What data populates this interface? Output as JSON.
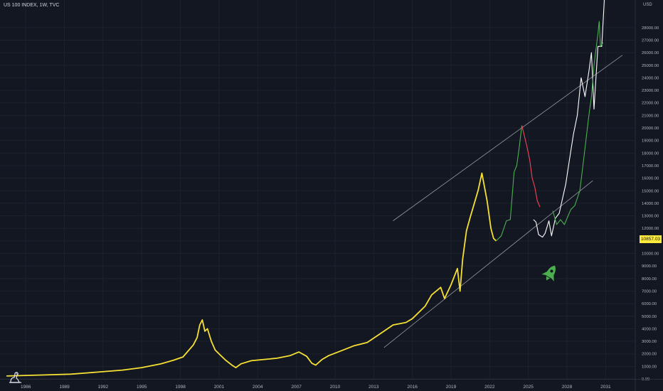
{
  "header": {
    "symbol_title": "US 100 INDEX, 1W, TVC"
  },
  "axis": {
    "currency": "USD",
    "y_ticks": [
      "0.00",
      "1000.00",
      "2000.00",
      "3000.00",
      "4000.00",
      "5000.00",
      "6000.00",
      "7000.00",
      "8000.00",
      "9000.00",
      "10000.00",
      "11000.00",
      "12000.00",
      "13000.00",
      "14000.00",
      "15000.00",
      "16000.00",
      "17000.00",
      "18000.00",
      "19000.00",
      "20000.00",
      "21000.00",
      "22000.00",
      "23000.00",
      "24000.00",
      "25000.00",
      "26000.00",
      "27000.00",
      "28000.00"
    ],
    "x_ticks": [
      "1986",
      "1989",
      "1992",
      "1995",
      "1998",
      "2001",
      "2004",
      "2007",
      "2010",
      "2013",
      "2016",
      "2019",
      "2022",
      "2025",
      "2028",
      "2031"
    ]
  },
  "current_price": "10857.03",
  "icons": {
    "logo": "tradingview-dino-icon",
    "rocket": "rocket-icon"
  },
  "colors": {
    "background": "#131722",
    "history": "#f7e034",
    "projection_up": "#4caf50",
    "projection_down": "#f44355",
    "projection_white": "#ffffff",
    "channel": "#9598a1",
    "price_badge": "#ffeb3b"
  },
  "chart_data": {
    "type": "line",
    "title": "",
    "xlabel": "",
    "ylabel": "",
    "xlim": [
      1984.5,
      2033.8
    ],
    "ylim": [
      0,
      30200
    ],
    "grid": true,
    "series": [
      {
        "role": "history",
        "color": "#f7e034",
        "points": [
          [
            1985.0,
            230
          ],
          [
            1986.0,
            260
          ],
          [
            1988.0,
            320
          ],
          [
            1990.0,
            380
          ],
          [
            1992.0,
            540
          ],
          [
            1994.0,
            700
          ],
          [
            1995.5,
            900
          ],
          [
            1997.0,
            1200
          ],
          [
            1998.0,
            1500
          ],
          [
            1998.7,
            1750
          ],
          [
            1999.0,
            2100
          ],
          [
            1999.5,
            2700
          ],
          [
            1999.8,
            3300
          ],
          [
            2000.0,
            4300
          ],
          [
            2000.2,
            4700
          ],
          [
            2000.4,
            3800
          ],
          [
            2000.6,
            4000
          ],
          [
            2000.9,
            3000
          ],
          [
            2001.2,
            2300
          ],
          [
            2001.6,
            1900
          ],
          [
            2002.0,
            1500
          ],
          [
            2002.5,
            1100
          ],
          [
            2002.8,
            900
          ],
          [
            2003.2,
            1200
          ],
          [
            2004.0,
            1450
          ],
          [
            2005.0,
            1550
          ],
          [
            2006.0,
            1650
          ],
          [
            2007.0,
            1850
          ],
          [
            2007.7,
            2150
          ],
          [
            2008.3,
            1800
          ],
          [
            2008.7,
            1250
          ],
          [
            2009.0,
            1100
          ],
          [
            2009.5,
            1550
          ],
          [
            2010.0,
            1850
          ],
          [
            2011.0,
            2250
          ],
          [
            2012.0,
            2650
          ],
          [
            2013.0,
            2900
          ],
          [
            2014.0,
            3600
          ],
          [
            2015.0,
            4300
          ],
          [
            2016.0,
            4500
          ],
          [
            2016.5,
            4800
          ],
          [
            2017.5,
            5800
          ],
          [
            2018.0,
            6700
          ],
          [
            2018.7,
            7300
          ],
          [
            2019.0,
            6400
          ],
          [
            2019.5,
            7500
          ],
          [
            2020.0,
            8800
          ],
          [
            2020.2,
            7000
          ],
          [
            2020.4,
            9500
          ],
          [
            2020.7,
            11800
          ],
          [
            2021.0,
            12900
          ],
          [
            2021.6,
            15000
          ],
          [
            2021.9,
            16400
          ],
          [
            2022.3,
            14200
          ],
          [
            2022.6,
            12000
          ],
          [
            2022.8,
            11200
          ],
          [
            2023.0,
            11000
          ]
        ]
      },
      {
        "role": "projection",
        "color": "#4caf50",
        "points": [
          [
            2023.0,
            11000
          ],
          [
            2023.4,
            11400
          ],
          [
            2023.8,
            12600
          ],
          [
            2024.1,
            12700
          ],
          [
            2024.4,
            16500
          ],
          [
            2024.6,
            17000
          ],
          [
            2024.8,
            18500
          ],
          [
            2025.0,
            20200
          ]
        ]
      },
      {
        "role": "projection",
        "color": "#f44355",
        "points": [
          [
            2025.0,
            20200
          ],
          [
            2025.4,
            18500
          ],
          [
            2025.6,
            17500
          ],
          [
            2025.8,
            16000
          ],
          [
            2026.0,
            15300
          ],
          [
            2026.2,
            14200
          ],
          [
            2026.4,
            13700
          ]
        ]
      },
      {
        "role": "projection",
        "color": "#ffffff",
        "points": [
          [
            2025.9,
            12700
          ],
          [
            2026.1,
            12500
          ],
          [
            2026.3,
            11500
          ],
          [
            2026.6,
            11300
          ],
          [
            2026.8,
            11600
          ],
          [
            2027.1,
            12600
          ],
          [
            2027.3,
            11400
          ],
          [
            2027.6,
            12800
          ],
          [
            2027.9,
            13200
          ],
          [
            2028.4,
            15500
          ],
          [
            2028.7,
            17500
          ],
          [
            2029.0,
            19500
          ],
          [
            2029.3,
            21000
          ],
          [
            2029.6,
            24000
          ],
          [
            2029.9,
            22500
          ],
          [
            2030.2,
            24500
          ],
          [
            2030.4,
            26000
          ],
          [
            2030.6,
            21500
          ],
          [
            2030.9,
            26500
          ],
          [
            2031.2,
            26500
          ],
          [
            2031.4,
            30200
          ]
        ]
      },
      {
        "role": "projection",
        "color": "#4caf50",
        "points": [
          [
            2027.4,
            13400
          ],
          [
            2027.7,
            12300
          ],
          [
            2028.0,
            12700
          ],
          [
            2028.3,
            12300
          ],
          [
            2028.8,
            13500
          ],
          [
            2029.1,
            13800
          ],
          [
            2029.5,
            15000
          ],
          [
            2029.8,
            17500
          ],
          [
            2030.2,
            21000
          ],
          [
            2030.4,
            22500
          ],
          [
            2030.6,
            25000
          ],
          [
            2030.9,
            27500
          ],
          [
            2031.0,
            28500
          ],
          [
            2031.1,
            26500
          ],
          [
            2031.3,
            26800
          ]
        ]
      }
    ],
    "trend_channel": {
      "upper": [
        [
          2015.0,
          12600
        ],
        [
          2032.8,
          25800
        ]
      ],
      "lower": [
        [
          2014.3,
          2500
        ],
        [
          2030.5,
          15800
        ]
      ]
    }
  }
}
